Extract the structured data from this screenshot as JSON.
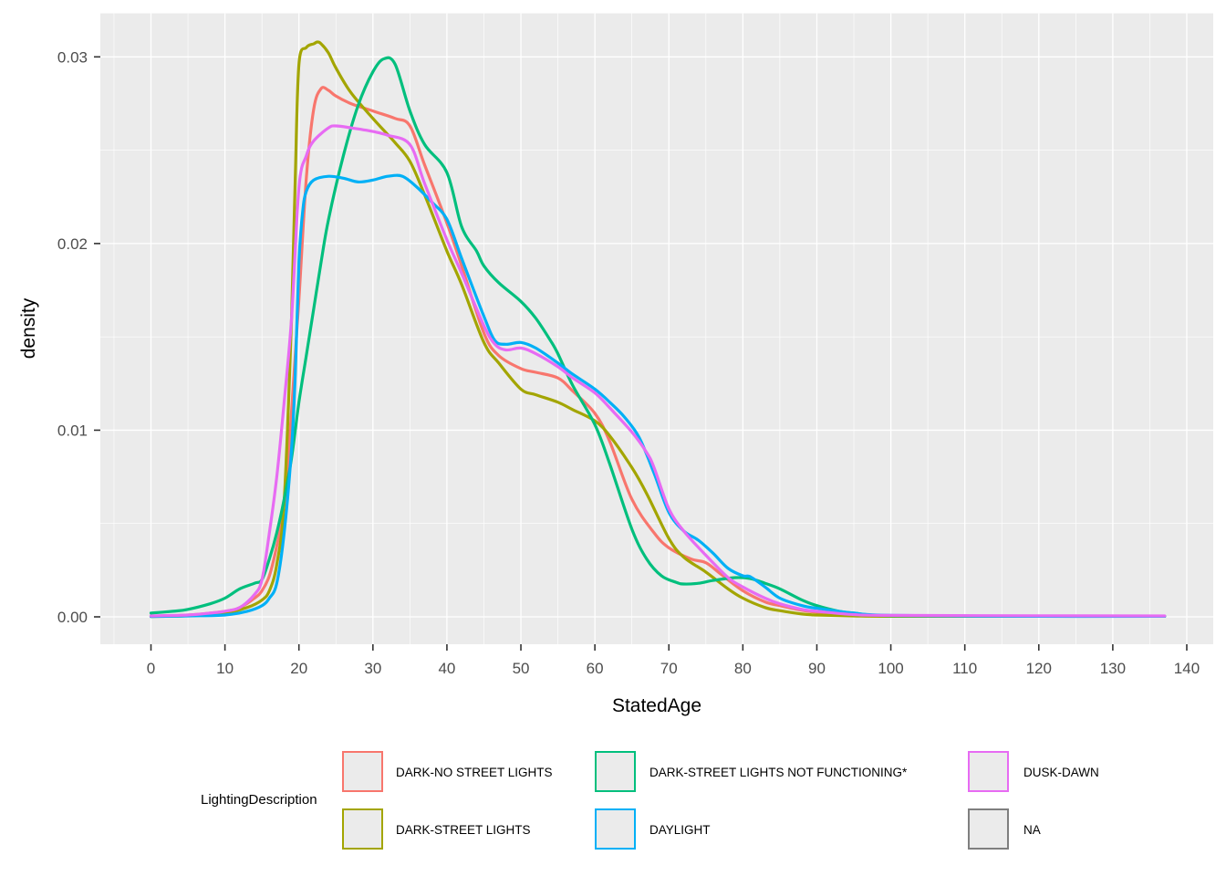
{
  "figure_title": "",
  "axes": {
    "x_title": "StatedAge",
    "y_title": "density"
  },
  "legend": {
    "title": "LightingDescription",
    "items": [
      {
        "label": "DARK-NO STREET LIGHTS",
        "color": "#F8766D"
      },
      {
        "label": "DARK-STREET LIGHTS",
        "color": "#A3A500"
      },
      {
        "label": "DARK-STREET LIGHTS NOT FUNCTIONING*",
        "color": "#00BF7D"
      },
      {
        "label": "DAYLIGHT",
        "color": "#00B0F6"
      },
      {
        "label": "DUSK-DAWN",
        "color": "#E76BF3"
      },
      {
        "label": "NA",
        "color": "#7F7F7F"
      }
    ]
  },
  "colors": {
    "panel_background": "#EBEBEB",
    "grid": "#FFFFFF",
    "tick_text": "#4D4D4D",
    "tick_mark": "#333333",
    "axis_title": "#000000"
  },
  "chart_data": {
    "type": "line",
    "subtype": "kernel-density",
    "title": "",
    "xlabel": "StatedAge",
    "ylabel": "density",
    "xlim": [
      -6.85,
      143.85
    ],
    "ylim": [
      0,
      0.0324
    ],
    "grid": "on",
    "legend_position": "bottom",
    "x_tick_values": [
      0,
      10,
      20,
      30,
      40,
      50,
      60,
      70,
      80,
      90,
      100,
      110,
      120,
      130,
      140
    ],
    "x_tick_labels": [
      "0",
      "10",
      "20",
      "30",
      "40",
      "50",
      "60",
      "70",
      "80",
      "90",
      "100",
      "110",
      "120",
      "130",
      "140"
    ],
    "x_minor_values": [
      -5,
      5,
      15,
      25,
      35,
      45,
      55,
      65,
      75,
      85,
      95,
      105,
      115,
      125,
      135
    ],
    "y_tick_values": [
      0,
      0.01,
      0.02,
      0.03
    ],
    "y_tick_labels": [
      "0.00",
      "0.01",
      "0.02",
      "0.03"
    ],
    "y_minor_values": [
      0.005,
      0.015,
      0.025
    ],
    "series": [
      {
        "name": "DARK-NO STREET LIGHTS",
        "color": "#F8766D",
        "peak": {
          "x": 23,
          "y": 0.0283
        },
        "points": [
          [
            0,
            3e-05
          ],
          [
            5,
            0.0001
          ],
          [
            10,
            0.0003
          ],
          [
            12,
            0.0005
          ],
          [
            14,
            0.001
          ],
          [
            15,
            0.0014
          ],
          [
            16,
            0.0022
          ],
          [
            17,
            0.0038
          ],
          [
            18,
            0.006
          ],
          [
            19,
            0.011
          ],
          [
            20,
            0.017
          ],
          [
            21,
            0.0235
          ],
          [
            22,
            0.0272
          ],
          [
            23,
            0.0283
          ],
          [
            24,
            0.0282
          ],
          [
            25,
            0.0279
          ],
          [
            27,
            0.0275
          ],
          [
            30,
            0.0271
          ],
          [
            33,
            0.0267
          ],
          [
            35,
            0.0263
          ],
          [
            37,
            0.0242
          ],
          [
            40,
            0.0211
          ],
          [
            42,
            0.0188
          ],
          [
            45,
            0.0152
          ],
          [
            47,
            0.014
          ],
          [
            50,
            0.0133
          ],
          [
            52,
            0.0131
          ],
          [
            55,
            0.0128
          ],
          [
            57,
            0.0121
          ],
          [
            60,
            0.0109
          ],
          [
            62,
            0.0094
          ],
          [
            65,
            0.0063
          ],
          [
            68,
            0.0045
          ],
          [
            70,
            0.0037
          ],
          [
            73,
            0.0031
          ],
          [
            75,
            0.0029
          ],
          [
            77,
            0.0023
          ],
          [
            80,
            0.0014
          ],
          [
            83,
            0.0008
          ],
          [
            85,
            0.0006
          ],
          [
            88,
            0.00035
          ],
          [
            90,
            0.00025
          ],
          [
            95,
            0.0001
          ],
          [
            100,
            5e-05
          ],
          [
            110,
            4e-05
          ],
          [
            125,
            4e-05
          ],
          [
            137,
            4e-05
          ]
        ]
      },
      {
        "name": "DARK-STREET LIGHTS",
        "color": "#A3A500",
        "peak": {
          "x": 22.5,
          "y": 0.0308
        },
        "points": [
          [
            0,
            2e-05
          ],
          [
            5,
            6e-05
          ],
          [
            10,
            0.0002
          ],
          [
            13,
            0.0005
          ],
          [
            15,
            0.0009
          ],
          [
            16,
            0.0014
          ],
          [
            17,
            0.0028
          ],
          [
            18,
            0.0062
          ],
          [
            19,
            0.016
          ],
          [
            19.5,
            0.0235
          ],
          [
            20,
            0.0296
          ],
          [
            21,
            0.0305
          ],
          [
            22,
            0.0307
          ],
          [
            22.5,
            0.0308
          ],
          [
            23,
            0.0307
          ],
          [
            24,
            0.0302
          ],
          [
            25,
            0.0294
          ],
          [
            27,
            0.0281
          ],
          [
            30,
            0.0267
          ],
          [
            33,
            0.0254
          ],
          [
            35,
            0.0244
          ],
          [
            37,
            0.0226
          ],
          [
            40,
            0.0196
          ],
          [
            42,
            0.0178
          ],
          [
            45,
            0.0147
          ],
          [
            47,
            0.0136
          ],
          [
            50,
            0.0122
          ],
          [
            52,
            0.0119
          ],
          [
            55,
            0.0115
          ],
          [
            57,
            0.0111
          ],
          [
            60,
            0.0105
          ],
          [
            62,
            0.0097
          ],
          [
            65,
            0.008
          ],
          [
            67,
            0.0066
          ],
          [
            70,
            0.0042
          ],
          [
            72,
            0.0032
          ],
          [
            75,
            0.0024
          ],
          [
            78,
            0.0015
          ],
          [
            80,
            0.001
          ],
          [
            83,
            0.0005
          ],
          [
            85,
            0.00033
          ],
          [
            88,
            0.00015
          ],
          [
            90,
            0.0001
          ],
          [
            95,
            5e-05
          ],
          [
            100,
            3e-05
          ],
          [
            120,
            3e-05
          ],
          [
            137,
            3e-05
          ]
        ]
      },
      {
        "name": "DARK-STREET LIGHTS NOT FUNCTIONING*",
        "color": "#00BF7D",
        "peak": {
          "x": 31.5,
          "y": 0.0299
        },
        "points": [
          [
            0,
            0.0002
          ],
          [
            3,
            0.0003
          ],
          [
            5,
            0.0004
          ],
          [
            8,
            0.0007
          ],
          [
            10,
            0.001
          ],
          [
            12,
            0.0015
          ],
          [
            14,
            0.0018
          ],
          [
            15,
            0.002
          ],
          [
            16,
            0.0031
          ],
          [
            17,
            0.0045
          ],
          [
            18,
            0.0063
          ],
          [
            19,
            0.0085
          ],
          [
            20,
            0.0115
          ],
          [
            21,
            0.014
          ],
          [
            22,
            0.0165
          ],
          [
            23,
            0.019
          ],
          [
            24,
            0.0213
          ],
          [
            26,
            0.0247
          ],
          [
            28,
            0.0274
          ],
          [
            30,
            0.0292
          ],
          [
            31.5,
            0.0299
          ],
          [
            33,
            0.0296
          ],
          [
            35,
            0.0271
          ],
          [
            37,
            0.0253
          ],
          [
            40,
            0.0238
          ],
          [
            42,
            0.0209
          ],
          [
            44,
            0.0196
          ],
          [
            45,
            0.0188
          ],
          [
            47,
            0.0179
          ],
          [
            50,
            0.0169
          ],
          [
            52,
            0.016
          ],
          [
            54,
            0.0148
          ],
          [
            55,
            0.0141
          ],
          [
            57,
            0.0124
          ],
          [
            60,
            0.0103
          ],
          [
            62,
            0.0082
          ],
          [
            65,
            0.0047
          ],
          [
            67,
            0.0031
          ],
          [
            69,
            0.0022
          ],
          [
            71,
            0.00185
          ],
          [
            72,
            0.00176
          ],
          [
            74,
            0.0018
          ],
          [
            76,
            0.00195
          ],
          [
            79,
            0.0021
          ],
          [
            81,
            0.00205
          ],
          [
            83,
            0.0018
          ],
          [
            85,
            0.0015
          ],
          [
            88,
            0.0009
          ],
          [
            90,
            0.0006
          ],
          [
            93,
            0.0003
          ],
          [
            95,
            0.0002
          ],
          [
            100,
            6e-05
          ],
          [
            120,
            3e-05
          ],
          [
            137,
            3e-05
          ]
        ]
      },
      {
        "name": "DAYLIGHT",
        "color": "#00B0F6",
        "peak": {
          "x": 24,
          "y": 0.0236
        },
        "points": [
          [
            0,
            2e-05
          ],
          [
            5,
            5e-05
          ],
          [
            10,
            0.0001
          ],
          [
            13,
            0.0003
          ],
          [
            15,
            0.0006
          ],
          [
            16,
            0.001
          ],
          [
            17,
            0.0018
          ],
          [
            18,
            0.0045
          ],
          [
            19,
            0.009
          ],
          [
            19.5,
            0.013
          ],
          [
            20,
            0.019
          ],
          [
            20.5,
            0.0217
          ],
          [
            21,
            0.0228
          ],
          [
            22,
            0.0234
          ],
          [
            24,
            0.0236
          ],
          [
            26,
            0.0235
          ],
          [
            28,
            0.0233
          ],
          [
            30,
            0.0234
          ],
          [
            32,
            0.0236
          ],
          [
            34,
            0.0236
          ],
          [
            36,
            0.023
          ],
          [
            38,
            0.0222
          ],
          [
            40,
            0.0213
          ],
          [
            42,
            0.0192
          ],
          [
            45,
            0.0161
          ],
          [
            46.5,
            0.0148
          ],
          [
            48,
            0.0146
          ],
          [
            50,
            0.0147
          ],
          [
            52,
            0.0144
          ],
          [
            55,
            0.0136
          ],
          [
            57,
            0.013
          ],
          [
            60,
            0.0122
          ],
          [
            62,
            0.0115
          ],
          [
            64,
            0.0107
          ],
          [
            66,
            0.0096
          ],
          [
            68,
            0.0077
          ],
          [
            70,
            0.0056
          ],
          [
            72,
            0.0046
          ],
          [
            74,
            0.0041
          ],
          [
            76,
            0.0034
          ],
          [
            78,
            0.0026
          ],
          [
            80,
            0.0022
          ],
          [
            81,
            0.00215
          ],
          [
            83,
            0.0016
          ],
          [
            85,
            0.001
          ],
          [
            88,
            0.0006
          ],
          [
            90,
            0.00046
          ],
          [
            93,
            0.0003
          ],
          [
            95,
            0.0002
          ],
          [
            100,
            8e-05
          ],
          [
            120,
            3e-05
          ],
          [
            137,
            3e-05
          ]
        ]
      },
      {
        "name": "DUSK-DAWN",
        "color": "#E76BF3",
        "peak": {
          "x": 25,
          "y": 0.0263
        },
        "points": [
          [
            0,
            5e-05
          ],
          [
            5,
            0.0001
          ],
          [
            8,
            0.0002
          ],
          [
            10,
            0.0003
          ],
          [
            12,
            0.0005
          ],
          [
            14,
            0.0012
          ],
          [
            15,
            0.002
          ],
          [
            16,
            0.0045
          ],
          [
            17,
            0.0075
          ],
          [
            18,
            0.0115
          ],
          [
            19,
            0.016
          ],
          [
            20,
            0.023
          ],
          [
            21,
            0.0247
          ],
          [
            22,
            0.0255
          ],
          [
            24,
            0.0262
          ],
          [
            25,
            0.0263
          ],
          [
            27,
            0.0262
          ],
          [
            30,
            0.026
          ],
          [
            32,
            0.0258
          ],
          [
            35,
            0.0253
          ],
          [
            37,
            0.0232
          ],
          [
            40,
            0.0202
          ],
          [
            42,
            0.0184
          ],
          [
            45,
            0.0156
          ],
          [
            46.5,
            0.0146
          ],
          [
            48,
            0.0143
          ],
          [
            50,
            0.0144
          ],
          [
            52,
            0.0141
          ],
          [
            55,
            0.0134
          ],
          [
            57,
            0.0128
          ],
          [
            60,
            0.012
          ],
          [
            62,
            0.0112
          ],
          [
            65,
            0.0099
          ],
          [
            67,
            0.0088
          ],
          [
            68,
            0.008
          ],
          [
            70,
            0.0058
          ],
          [
            72,
            0.0046
          ],
          [
            75,
            0.0033
          ],
          [
            78,
            0.0021
          ],
          [
            80,
            0.0016
          ],
          [
            83,
            0.001
          ],
          [
            85,
            0.0007
          ],
          [
            88,
            0.0004
          ],
          [
            90,
            0.0003
          ],
          [
            95,
            0.00012
          ],
          [
            100,
            8e-05
          ],
          [
            120,
            6e-05
          ],
          [
            137,
            5e-05
          ]
        ]
      },
      {
        "name": "NA",
        "color": "#7F7F7F",
        "note": "legend entry only; no visible curve",
        "points": []
      }
    ]
  }
}
